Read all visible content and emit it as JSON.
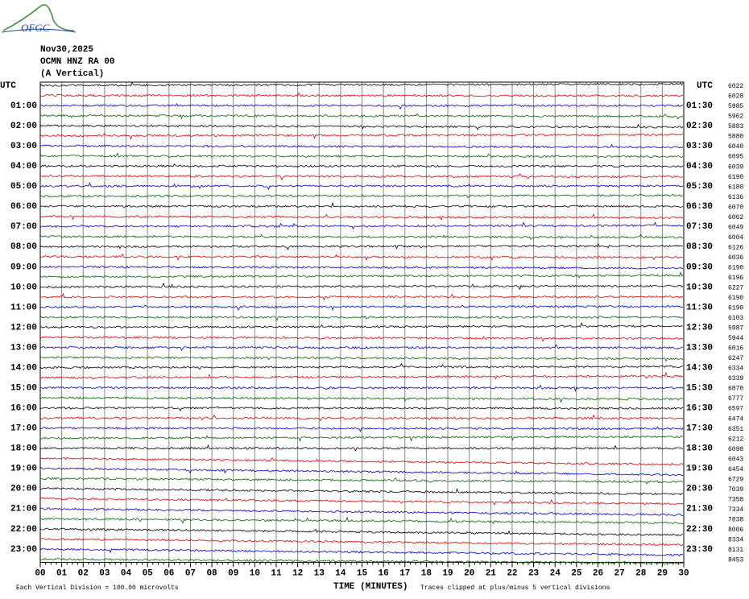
{
  "header": {
    "logo": "OFGC",
    "date": "Nov30,2025",
    "station": "OCMN HNZ RA 00",
    "component": "(A Vertical)"
  },
  "left_axis": {
    "title": "UTC",
    "labels": [
      "01:00",
      "02:00",
      "03:00",
      "04:00",
      "05:00",
      "06:00",
      "07:00",
      "08:00",
      "09:00",
      "10:00",
      "11:00",
      "12:00",
      "13:00",
      "14:00",
      "15:00",
      "16:00",
      "17:00",
      "18:00",
      "19:00",
      "20:00",
      "21:00",
      "22:00",
      "23:00"
    ]
  },
  "right_axis": {
    "title": "UTC",
    "labels": [
      "01:30",
      "02:30",
      "03:30",
      "04:30",
      "05:30",
      "06:30",
      "07:30",
      "08:30",
      "09:30",
      "10:30",
      "11:30",
      "12:30",
      "13:30",
      "14:30",
      "15:30",
      "16:30",
      "17:30",
      "18:30",
      "19:30",
      "20:30",
      "21:30",
      "22:30",
      "23:30"
    ]
  },
  "row_values": [
    6022,
    6028,
    5985,
    5962,
    5883,
    5880,
    6040,
    6095,
    6039,
    6190,
    6180,
    6136,
    6070,
    6062,
    6049,
    6004,
    6126,
    6036,
    6190,
    6196,
    6227,
    6190,
    6190,
    6103,
    5987,
    5944,
    6016,
    6247,
    6334,
    6339,
    6870,
    6777,
    6597,
    6474,
    6351,
    6212,
    6098,
    6043,
    6454,
    6729,
    7039,
    7358,
    7334,
    7838,
    8006,
    8334,
    8131,
    8453
  ],
  "x_axis": {
    "labels": [
      "00",
      "01",
      "02",
      "03",
      "04",
      "05",
      "06",
      "07",
      "08",
      "09",
      "10",
      "11",
      "12",
      "13",
      "14",
      "15",
      "16",
      "17",
      "18",
      "19",
      "20",
      "21",
      "22",
      "23",
      "24",
      "25",
      "26",
      "27",
      "28",
      "29",
      "30"
    ],
    "title": "TIME (MINUTES)"
  },
  "footer": {
    "scale": "Each Vertical Division =  100.00 microvolts",
    "clip": "Traces clipped at plus/minus 5 vertical divisions"
  }
}
